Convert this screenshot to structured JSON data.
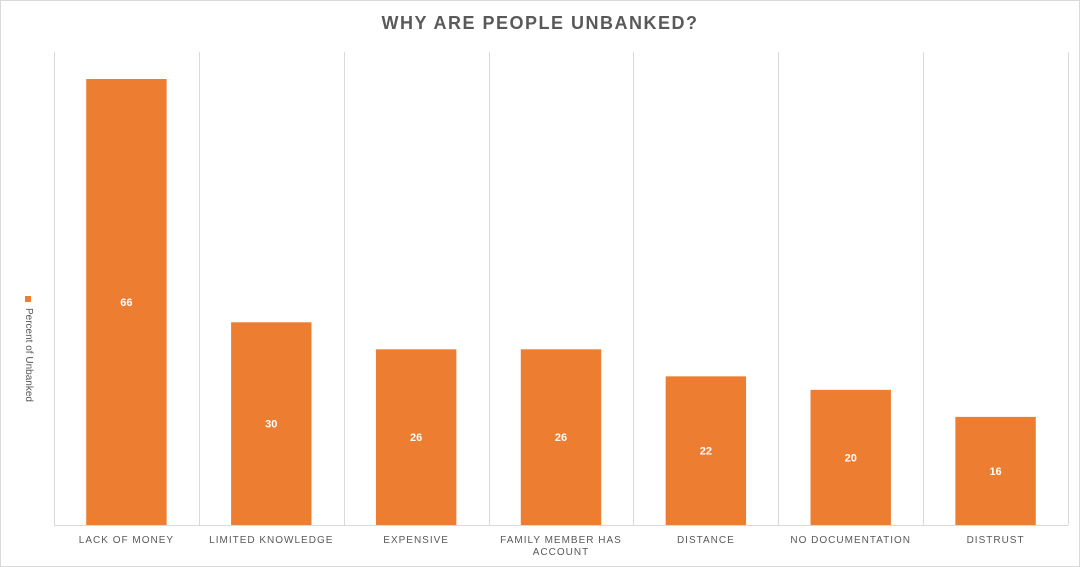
{
  "chart_data": {
    "type": "bar",
    "title": "WHY ARE PEOPLE UNBANKED?",
    "categories": [
      "LACK OF MONEY",
      "LIMITED KNOWLEDGE",
      "EXPENSIVE",
      "FAMILY MEMBER HAS ACCOUNT",
      "DISTANCE",
      "NO DOCUMENTATION",
      "DISTRUST"
    ],
    "series": [
      {
        "name": "Percent of Unbanked",
        "values": [
          66,
          30,
          26,
          26,
          22,
          20,
          16
        ]
      }
    ],
    "ylim": [
      0,
      70
    ],
    "grid": "vertical",
    "legend_position": "left",
    "data_labels": true,
    "bar_color": "#ED7D31"
  }
}
